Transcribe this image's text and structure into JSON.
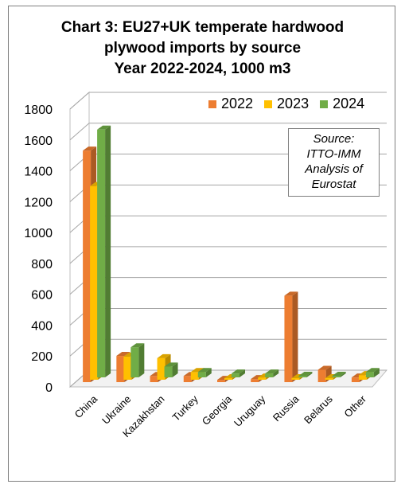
{
  "chart_data": {
    "type": "bar",
    "title_lines": [
      "Chart 3: EU27+UK temperate hardwood",
      "plywood imports by source",
      "Year 2022-2024, 1000 m3"
    ],
    "categories": [
      "China",
      "Ukraine",
      "Kazakhstan",
      "Turkey",
      "Georgia",
      "Uruguay",
      "Russia",
      "Belarus",
      "Other"
    ],
    "series": [
      {
        "name": "2022",
        "color": "#ed7d31",
        "values": [
          1500,
          170,
          40,
          40,
          15,
          20,
          560,
          80,
          30
        ]
      },
      {
        "name": "2023",
        "color": "#ffc000",
        "values": [
          1255,
          150,
          140,
          50,
          10,
          15,
          5,
          0,
          30
        ]
      },
      {
        "name": "2024",
        "color": "#70ad47",
        "values": [
          1605,
          195,
          70,
          35,
          25,
          25,
          5,
          5,
          35
        ]
      }
    ],
    "yticks": [
      0,
      200,
      400,
      600,
      800,
      1000,
      1200,
      1400,
      1600,
      1800
    ],
    "ylim": [
      0,
      1800
    ],
    "legend_position": "top-right",
    "annotation": "Source:\nITTO-IMM\nAnalysis of\nEurostat"
  }
}
